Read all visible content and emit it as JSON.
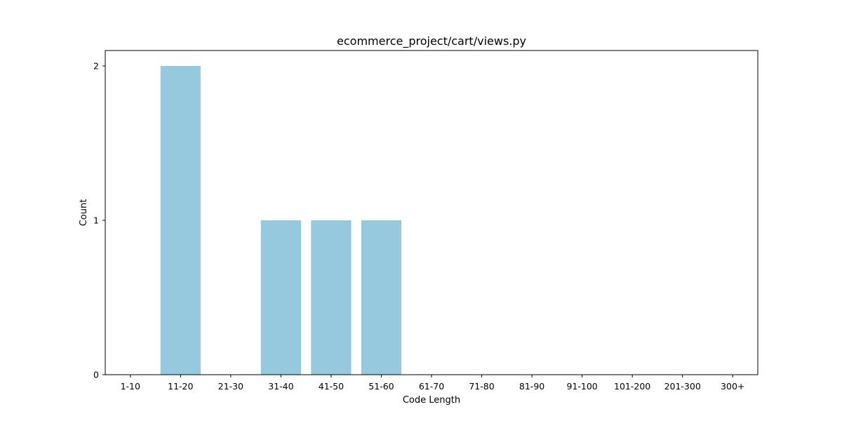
{
  "chart_data": {
    "type": "bar",
    "title": "ecommerce_project/cart/views.py",
    "xlabel": "Code Length",
    "ylabel": "Count",
    "categories": [
      "1-10",
      "11-20",
      "21-30",
      "31-40",
      "41-50",
      "51-60",
      "61-70",
      "71-80",
      "81-90",
      "91-100",
      "101-200",
      "201-300",
      "300+"
    ],
    "values": [
      0,
      2,
      0,
      1,
      1,
      1,
      0,
      0,
      0,
      0,
      0,
      0,
      0
    ],
    "ylim": [
      0,
      2.1
    ],
    "yticks": [
      "0",
      "1",
      "2"
    ],
    "bar_color": "#96c9de",
    "legend": "none",
    "grid": false
  }
}
